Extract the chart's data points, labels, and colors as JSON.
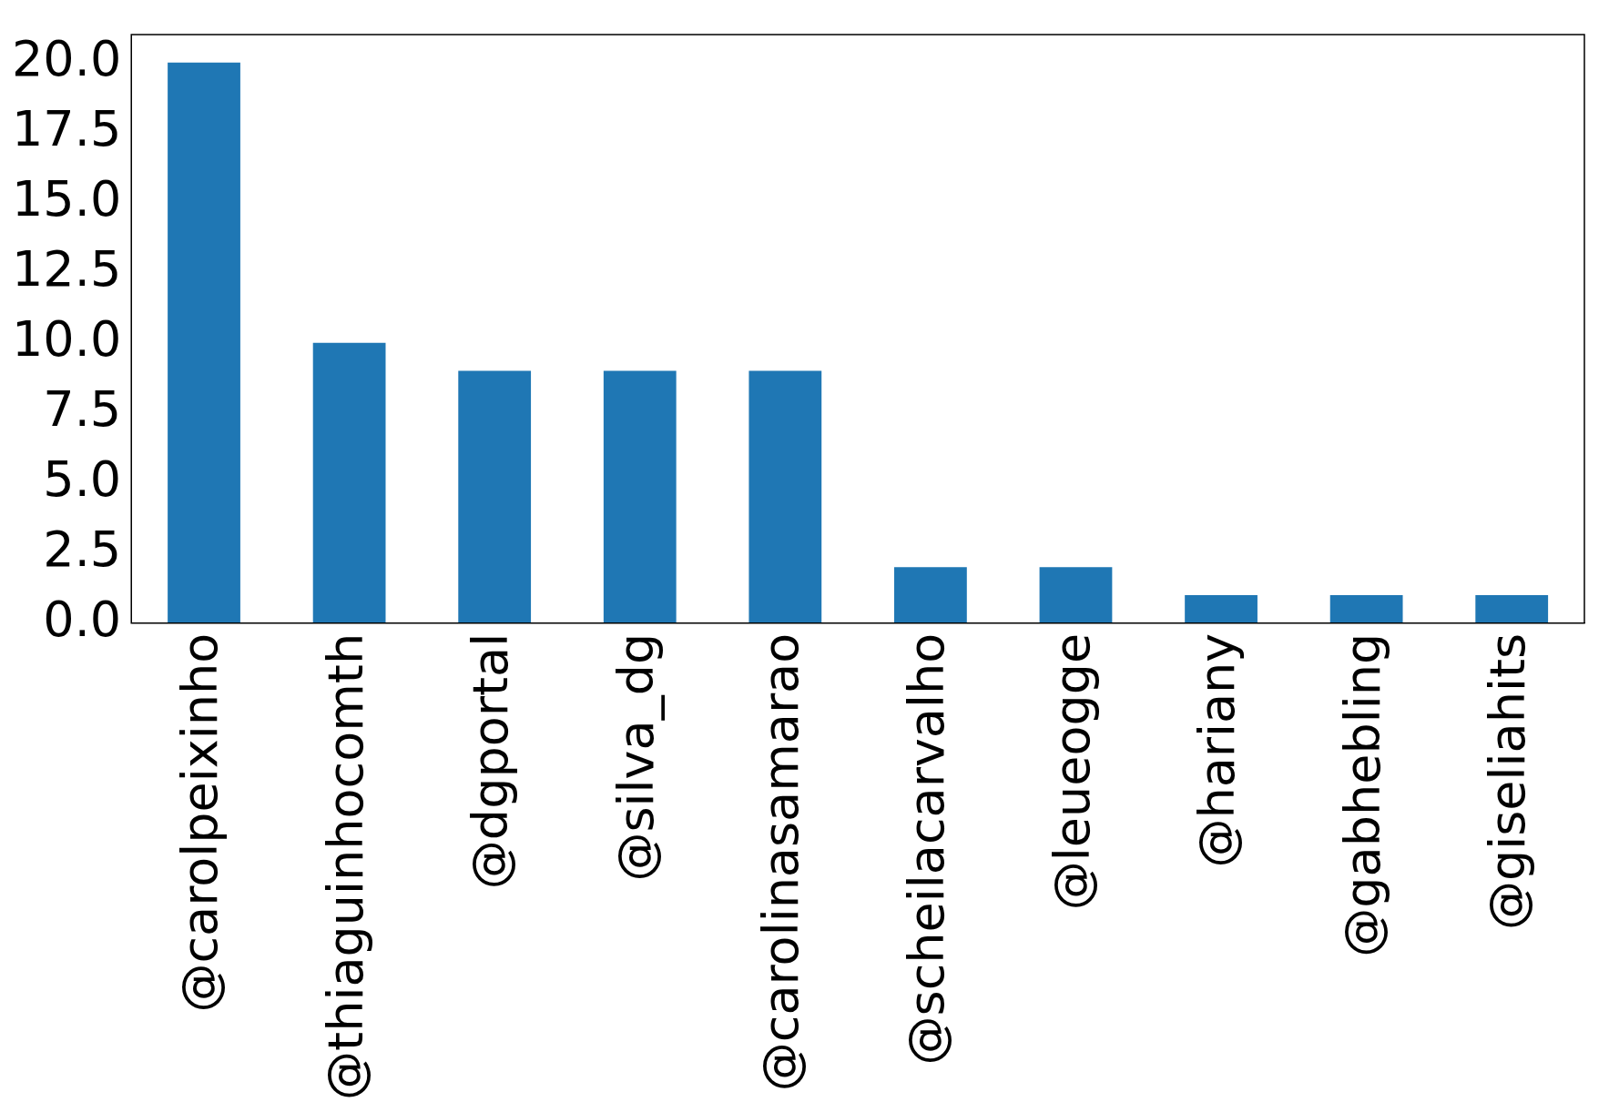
{
  "chart_data": {
    "type": "bar",
    "categories": [
      "@carolpeixinho",
      "@thiaguinhocomth",
      "@dgportal",
      "@silva_dg",
      "@carolinasamarao",
      "@scheilacarvalho",
      "@leueogge",
      "@hariany",
      "@gabhebling",
      "@giseliahits"
    ],
    "values": [
      20,
      10,
      9,
      9,
      9,
      2,
      2,
      1,
      1,
      1
    ],
    "color": "#1f77b4",
    "ylim": [
      0,
      21
    ],
    "yticks": [
      {
        "value": 0,
        "label": "0.0"
      },
      {
        "value": 2.5,
        "label": "2.5"
      },
      {
        "value": 5,
        "label": "5.0"
      },
      {
        "value": 7.5,
        "label": "7.5"
      },
      {
        "value": 10,
        "label": "10.0"
      },
      {
        "value": 12.5,
        "label": "12.5"
      },
      {
        "value": 15,
        "label": "15.0"
      },
      {
        "value": 17.5,
        "label": "17.5"
      },
      {
        "value": 20,
        "label": "20.0"
      }
    ],
    "grid": false,
    "legend": false
  }
}
